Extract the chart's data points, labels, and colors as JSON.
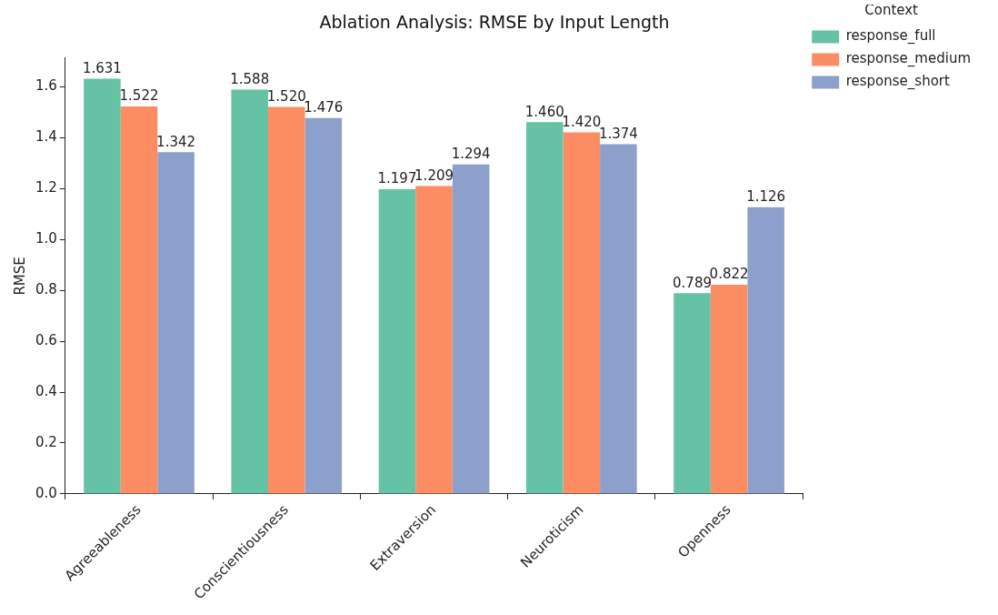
{
  "chart_data": {
    "type": "bar",
    "title": "Ablation Analysis: RMSE by Input Length",
    "ylabel": "RMSE",
    "legend_title": "Context",
    "categories": [
      "Agreeableness",
      "Conscientiousness",
      "Extraversion",
      "Neuroticism",
      "Openness"
    ],
    "series": [
      {
        "name": "response_full",
        "color": "#66c2a5",
        "values": [
          1.631,
          1.588,
          1.197,
          1.46,
          0.789
        ],
        "value_labels": [
          "1.631",
          "1.588",
          "1.197",
          "1.460",
          "0.789"
        ]
      },
      {
        "name": "response_medium",
        "color": "#fc8d62",
        "values": [
          1.522,
          1.52,
          1.209,
          1.42,
          0.822
        ],
        "value_labels": [
          "1.522",
          "1.520",
          "1.209",
          "1.420",
          "0.822"
        ]
      },
      {
        "name": "response_short",
        "color": "#8da0cb",
        "values": [
          1.342,
          1.476,
          1.294,
          1.374,
          1.126
        ],
        "value_labels": [
          "1.342",
          "1.476",
          "1.294",
          "1.374",
          "1.126"
        ]
      }
    ],
    "ylim": [
      0,
      1.712
    ],
    "yticks": [
      {
        "value": 0,
        "label": "0.0"
      },
      {
        "value": 0.2,
        "label": "0.2"
      },
      {
        "value": 0.4,
        "label": "0.4"
      },
      {
        "value": 0.6,
        "label": "0.6"
      },
      {
        "value": 0.8,
        "label": "0.8"
      },
      {
        "value": 1,
        "label": "1.0"
      },
      {
        "value": 1.2,
        "label": "1.2"
      },
      {
        "value": 1.4,
        "label": "1.4"
      },
      {
        "value": 1.6,
        "label": "1.6"
      }
    ],
    "grid": false,
    "legend": "top right"
  }
}
